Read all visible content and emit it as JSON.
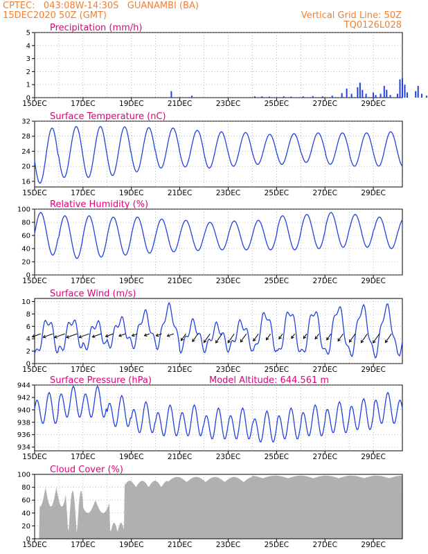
{
  "header": {
    "line1_left": "CPTEC:   043:08W-14:30S   GUANAMBI (BA)",
    "line2_left": "15DEC2020 50Z (GMT)",
    "line1_right": "Vertical Grid Line: 50Z",
    "line2_right": "TQ0126L028"
  },
  "colors": {
    "title": "#e0007a",
    "header": "#f08030",
    "series": "#2040e0",
    "cloud": "#b0b0b0"
  },
  "x_ticks": [
    "15DEC",
    "17DEC",
    "19DEC",
    "21DEC",
    "23DEC",
    "25DEC",
    "27DEC",
    "29DEC"
  ],
  "chart_data": [
    {
      "type": "bar",
      "title": "Precipitation (mm/h)",
      "ylim": [
        0,
        5
      ],
      "yticks": [
        0,
        1,
        2,
        3,
        4,
        5
      ],
      "x_range_days": [
        0,
        15.2
      ],
      "events": [
        [
          5.65,
          0.5
        ],
        [
          6.5,
          0.15
        ],
        [
          9.1,
          0.1
        ],
        [
          9.4,
          0.1
        ],
        [
          9.7,
          0.08
        ],
        [
          10.3,
          0.1
        ],
        [
          10.6,
          0.08
        ],
        [
          11.1,
          0.1
        ],
        [
          11.5,
          0.12
        ],
        [
          11.9,
          0.1
        ],
        [
          12.3,
          0.15
        ],
        [
          12.7,
          0.35
        ],
        [
          12.9,
          0.7
        ],
        [
          13.1,
          0.3
        ],
        [
          13.35,
          0.8
        ],
        [
          13.45,
          1.15
        ],
        [
          13.55,
          0.6
        ],
        [
          13.7,
          0.3
        ],
        [
          14.0,
          0.4
        ],
        [
          14.1,
          0.2
        ],
        [
          14.3,
          0.3
        ],
        [
          14.45,
          0.9
        ],
        [
          14.55,
          0.6
        ],
        [
          14.7,
          0.2
        ],
        [
          15.0,
          0.3
        ],
        [
          15.1,
          1.4
        ],
        [
          15.2,
          1.5
        ],
        [
          15.3,
          1.0
        ],
        [
          15.4,
          0.4
        ],
        [
          15.75,
          0.5
        ],
        [
          15.85,
          0.9
        ],
        [
          16.0,
          0.3
        ],
        [
          16.2,
          0.15
        ]
      ]
    },
    {
      "type": "line",
      "title": "Surface Temperature (nC)",
      "ylim": [
        14.5,
        32
      ],
      "yticks": [
        16,
        20,
        24,
        28,
        32
      ],
      "series": [
        {
          "model": "diurnal",
          "min": [
            15.5,
            17,
            17,
            17.5,
            18.5,
            19.5,
            19.8,
            19.5,
            20,
            20.5,
            20.5,
            21,
            20.5,
            20,
            20,
            20
          ],
          "max": [
            30.2,
            30.6,
            30.6,
            30.5,
            30.3,
            30.2,
            29.6,
            29.2,
            29,
            28.5,
            28.7,
            28.9,
            28.9,
            28.9,
            29.2,
            29.5
          ]
        }
      ]
    },
    {
      "type": "line",
      "title": "Relative Humidity (%)",
      "ylim": [
        0,
        100
      ],
      "yticks": [
        0,
        20,
        40,
        60,
        80,
        100
      ],
      "series": [
        {
          "model": "diurnal",
          "min": [
            30,
            25,
            27,
            30,
            33,
            35,
            37,
            38,
            38,
            38,
            38,
            40,
            42,
            42,
            40,
            40
          ],
          "max": [
            95,
            90,
            90,
            88,
            88,
            85,
            83,
            80,
            82,
            83,
            90,
            92,
            95,
            92,
            88,
            85
          ]
        }
      ]
    },
    {
      "type": "line",
      "title": "Surface Wind (m/s)",
      "ylim": [
        0,
        10.5
      ],
      "yticks": [
        0,
        2,
        4,
        6,
        8,
        10
      ],
      "series": [
        {
          "model": "diurnal",
          "min": [
            1.5,
            2,
            2.5,
            3,
            3,
            3,
            2.5,
            2.5,
            2.5,
            2,
            1.5,
            1.5,
            1.5,
            1.5,
            1.5,
            2
          ],
          "max": [
            7,
            7,
            6.5,
            7,
            8,
            9,
            6.5,
            6,
            6.5,
            8,
            8.5,
            8.5,
            9,
            9,
            9,
            7
          ]
        }
      ],
      "arrow_y": 4.8
    },
    {
      "type": "line",
      "title": "Surface Pressure (hPa)",
      "annotation": "Model Altitude: 644.561  m",
      "ylim": [
        933.4,
        944
      ],
      "yticks": [
        934,
        936,
        938,
        940,
        942,
        944
      ],
      "series": [
        {
          "model": "semidiurnal",
          "mean": [
            940,
            941,
            941,
            939.5,
            938.5,
            938,
            938,
            937.5,
            937.5,
            937,
            937.5,
            938,
            938.5,
            939,
            940,
            940
          ]
        }
      ]
    },
    {
      "type": "area",
      "title": "Cloud Cover (%)",
      "ylim": [
        0,
        100
      ],
      "yticks": [
        0,
        20,
        40,
        60,
        80,
        100
      ]
    }
  ]
}
